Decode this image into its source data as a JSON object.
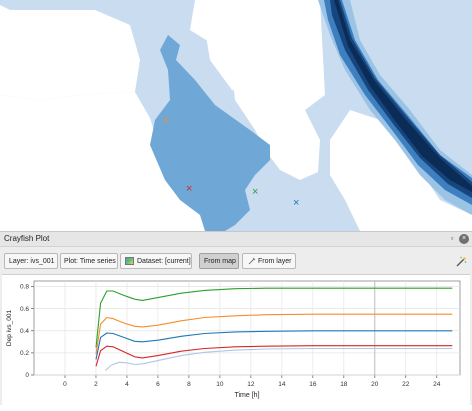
{
  "map": {
    "markers": [
      {
        "symbol": "×",
        "color": "#f28e2b"
      },
      {
        "symbol": "×",
        "color": "#d62728"
      },
      {
        "symbol": "×",
        "color": "#2ca02c"
      },
      {
        "symbol": "×",
        "color": "#1f77b4"
      }
    ]
  },
  "panel": {
    "title": "Crayfish Plot",
    "float_label": "▫",
    "close_label": "×"
  },
  "toolbar": {
    "layer_label": "Layer: ivs_001",
    "plot_label": "Plot: Time series",
    "dataset_label": "Dataset: [current]",
    "from_map_label": "From map",
    "from_layer_label": "From layer"
  },
  "chart_data": {
    "type": "line",
    "xlabel": "Time [h]",
    "ylabel": "Dep ivs_001",
    "xlim": [
      -2,
      25.5
    ],
    "ylim": [
      0,
      0.85
    ],
    "x_ticks": [
      "0",
      "2",
      "4",
      "6",
      "8",
      "10",
      "12",
      "14",
      "16",
      "18",
      "20",
      "22",
      "24"
    ],
    "y_ticks": [
      "0",
      "0.2",
      "0.4",
      "0.6",
      "0.8"
    ],
    "grid": true,
    "marker_line_x": 20,
    "series": [
      {
        "color": "#2ca02c",
        "x": [
          2.0,
          2.3,
          2.7,
          3.1,
          3.8,
          4.5,
          5.0,
          6.0,
          7.5,
          9.0,
          11.0,
          13.0,
          16.0,
          20.0,
          25.0
        ],
        "y": [
          0.25,
          0.65,
          0.76,
          0.76,
          0.72,
          0.685,
          0.675,
          0.7,
          0.74,
          0.765,
          0.78,
          0.785,
          0.785,
          0.785,
          0.785
        ]
      },
      {
        "color": "#f28e2b",
        "x": [
          2.0,
          2.3,
          2.7,
          3.1,
          3.8,
          4.5,
          5.0,
          6.0,
          7.5,
          9.0,
          11.0,
          13.0,
          16.0,
          20.0,
          25.0
        ],
        "y": [
          0.19,
          0.46,
          0.52,
          0.51,
          0.47,
          0.44,
          0.435,
          0.45,
          0.49,
          0.52,
          0.535,
          0.545,
          0.55,
          0.55,
          0.55
        ]
      },
      {
        "color": "#1f77b4",
        "x": [
          2.0,
          2.3,
          2.7,
          3.1,
          3.8,
          4.5,
          5.0,
          6.0,
          7.5,
          9.0,
          11.0,
          13.0,
          16.0,
          20.0,
          25.0
        ],
        "y": [
          0.14,
          0.34,
          0.38,
          0.375,
          0.34,
          0.305,
          0.3,
          0.315,
          0.35,
          0.375,
          0.39,
          0.395,
          0.4,
          0.4,
          0.4
        ]
      },
      {
        "color": "#d62728",
        "x": [
          2.0,
          2.3,
          2.7,
          3.1,
          3.8,
          4.5,
          5.0,
          6.0,
          7.5,
          9.0,
          11.0,
          13.0,
          16.0,
          20.0,
          25.0
        ],
        "y": [
          0.08,
          0.22,
          0.26,
          0.255,
          0.21,
          0.165,
          0.155,
          0.175,
          0.215,
          0.24,
          0.255,
          0.26,
          0.265,
          0.265,
          0.265
        ]
      },
      {
        "color": "#aec7e8",
        "x": [
          2.6,
          3.0,
          3.5,
          4.0,
          4.5,
          5.0,
          6.0,
          7.5,
          9.0,
          11.0,
          13.0,
          16.0,
          20.0,
          25.0
        ],
        "y": [
          0.04,
          0.09,
          0.115,
          0.11,
          0.095,
          0.1,
          0.13,
          0.175,
          0.205,
          0.225,
          0.235,
          0.24,
          0.24,
          0.24
        ]
      }
    ]
  }
}
